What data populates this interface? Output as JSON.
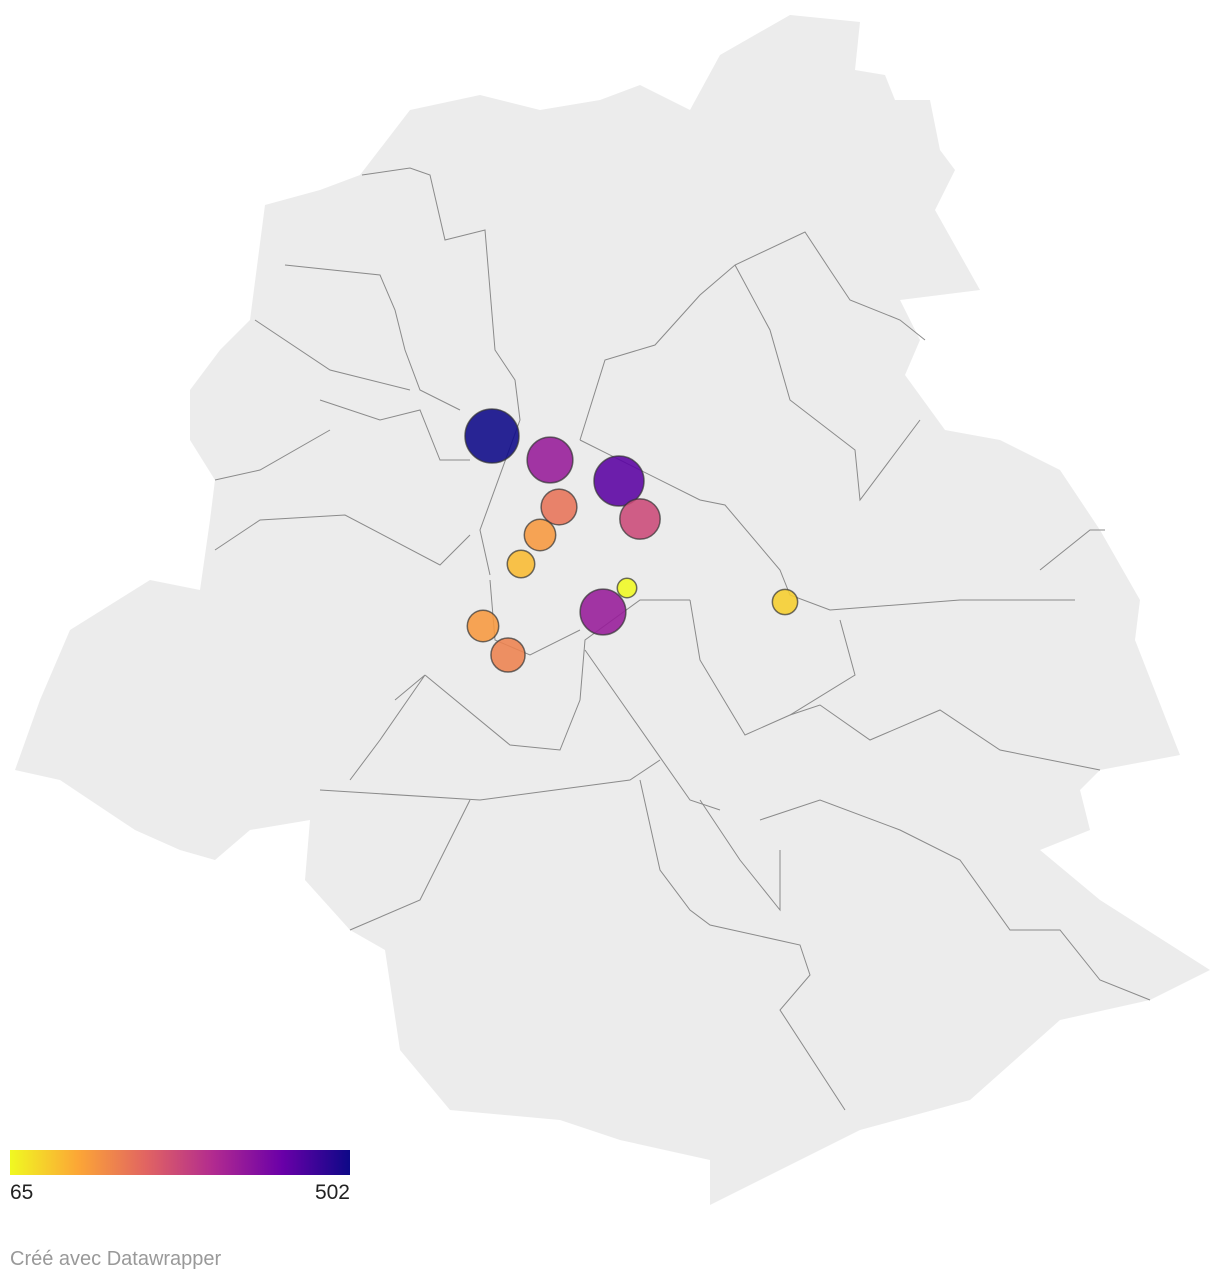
{
  "legend": {
    "min": 65,
    "max": 502,
    "colors": [
      "#f0f921",
      "#fca636",
      "#e16462",
      "#b12a90",
      "#6a00a8",
      "#0d0887"
    ]
  },
  "points": [
    {
      "value": 502
    },
    {
      "value": 360
    },
    {
      "value": 430
    },
    {
      "value": 220
    },
    {
      "value": 280
    },
    {
      "value": 170
    },
    {
      "value": 130
    },
    {
      "value": 65
    },
    {
      "value": 360
    },
    {
      "value": 110
    },
    {
      "value": 170
    },
    {
      "value": 200
    }
  ],
  "credit": "Créé avec Datawrapper"
}
